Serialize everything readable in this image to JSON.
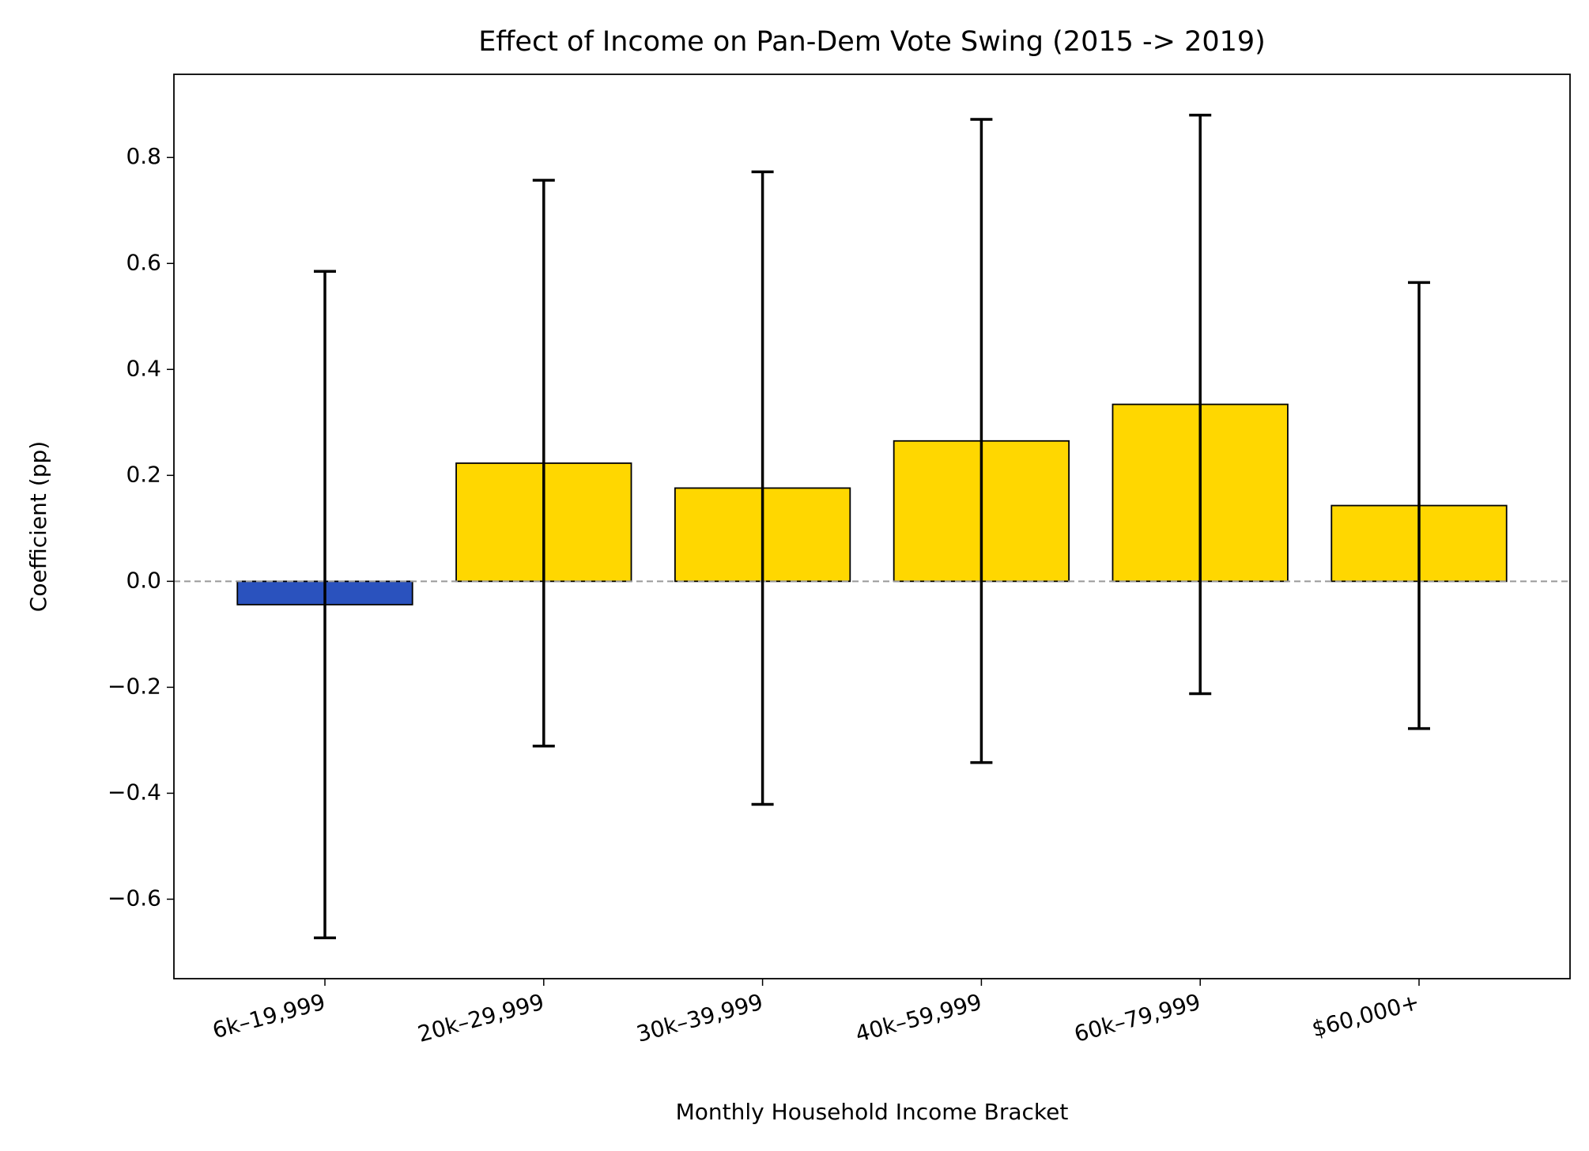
{
  "chart_data": {
    "type": "bar",
    "title": "Effect of Income on Pan-Dem Vote Swing (2015 -> 2019)",
    "xlabel": "Monthly Household Income Bracket",
    "ylabel": "Coefficient (pp)",
    "categories": [
      "6k–19,999",
      "20k–29,999",
      "30k–39,999",
      "40k–59,999",
      "60k–79,999",
      "$60,000+"
    ],
    "values": [
      -0.044,
      0.223,
      0.176,
      0.265,
      0.334,
      0.143
    ],
    "errors": [
      0.629,
      0.534,
      0.597,
      0.607,
      0.546,
      0.421
    ],
    "colors": [
      "#2a52be",
      "#ffd700",
      "#ffd700",
      "#ffd700",
      "#ffd700",
      "#ffd700"
    ],
    "ylim": [
      -0.75,
      0.957
    ],
    "yticks": [
      {
        "value": -0.6,
        "label": "−0.6"
      },
      {
        "value": -0.4,
        "label": "−0.4"
      },
      {
        "value": -0.2,
        "label": "−0.2"
      },
      {
        "value": 0,
        "label": "0.0"
      },
      0.2,
      0.4,
      0.6,
      0.8
    ]
  }
}
